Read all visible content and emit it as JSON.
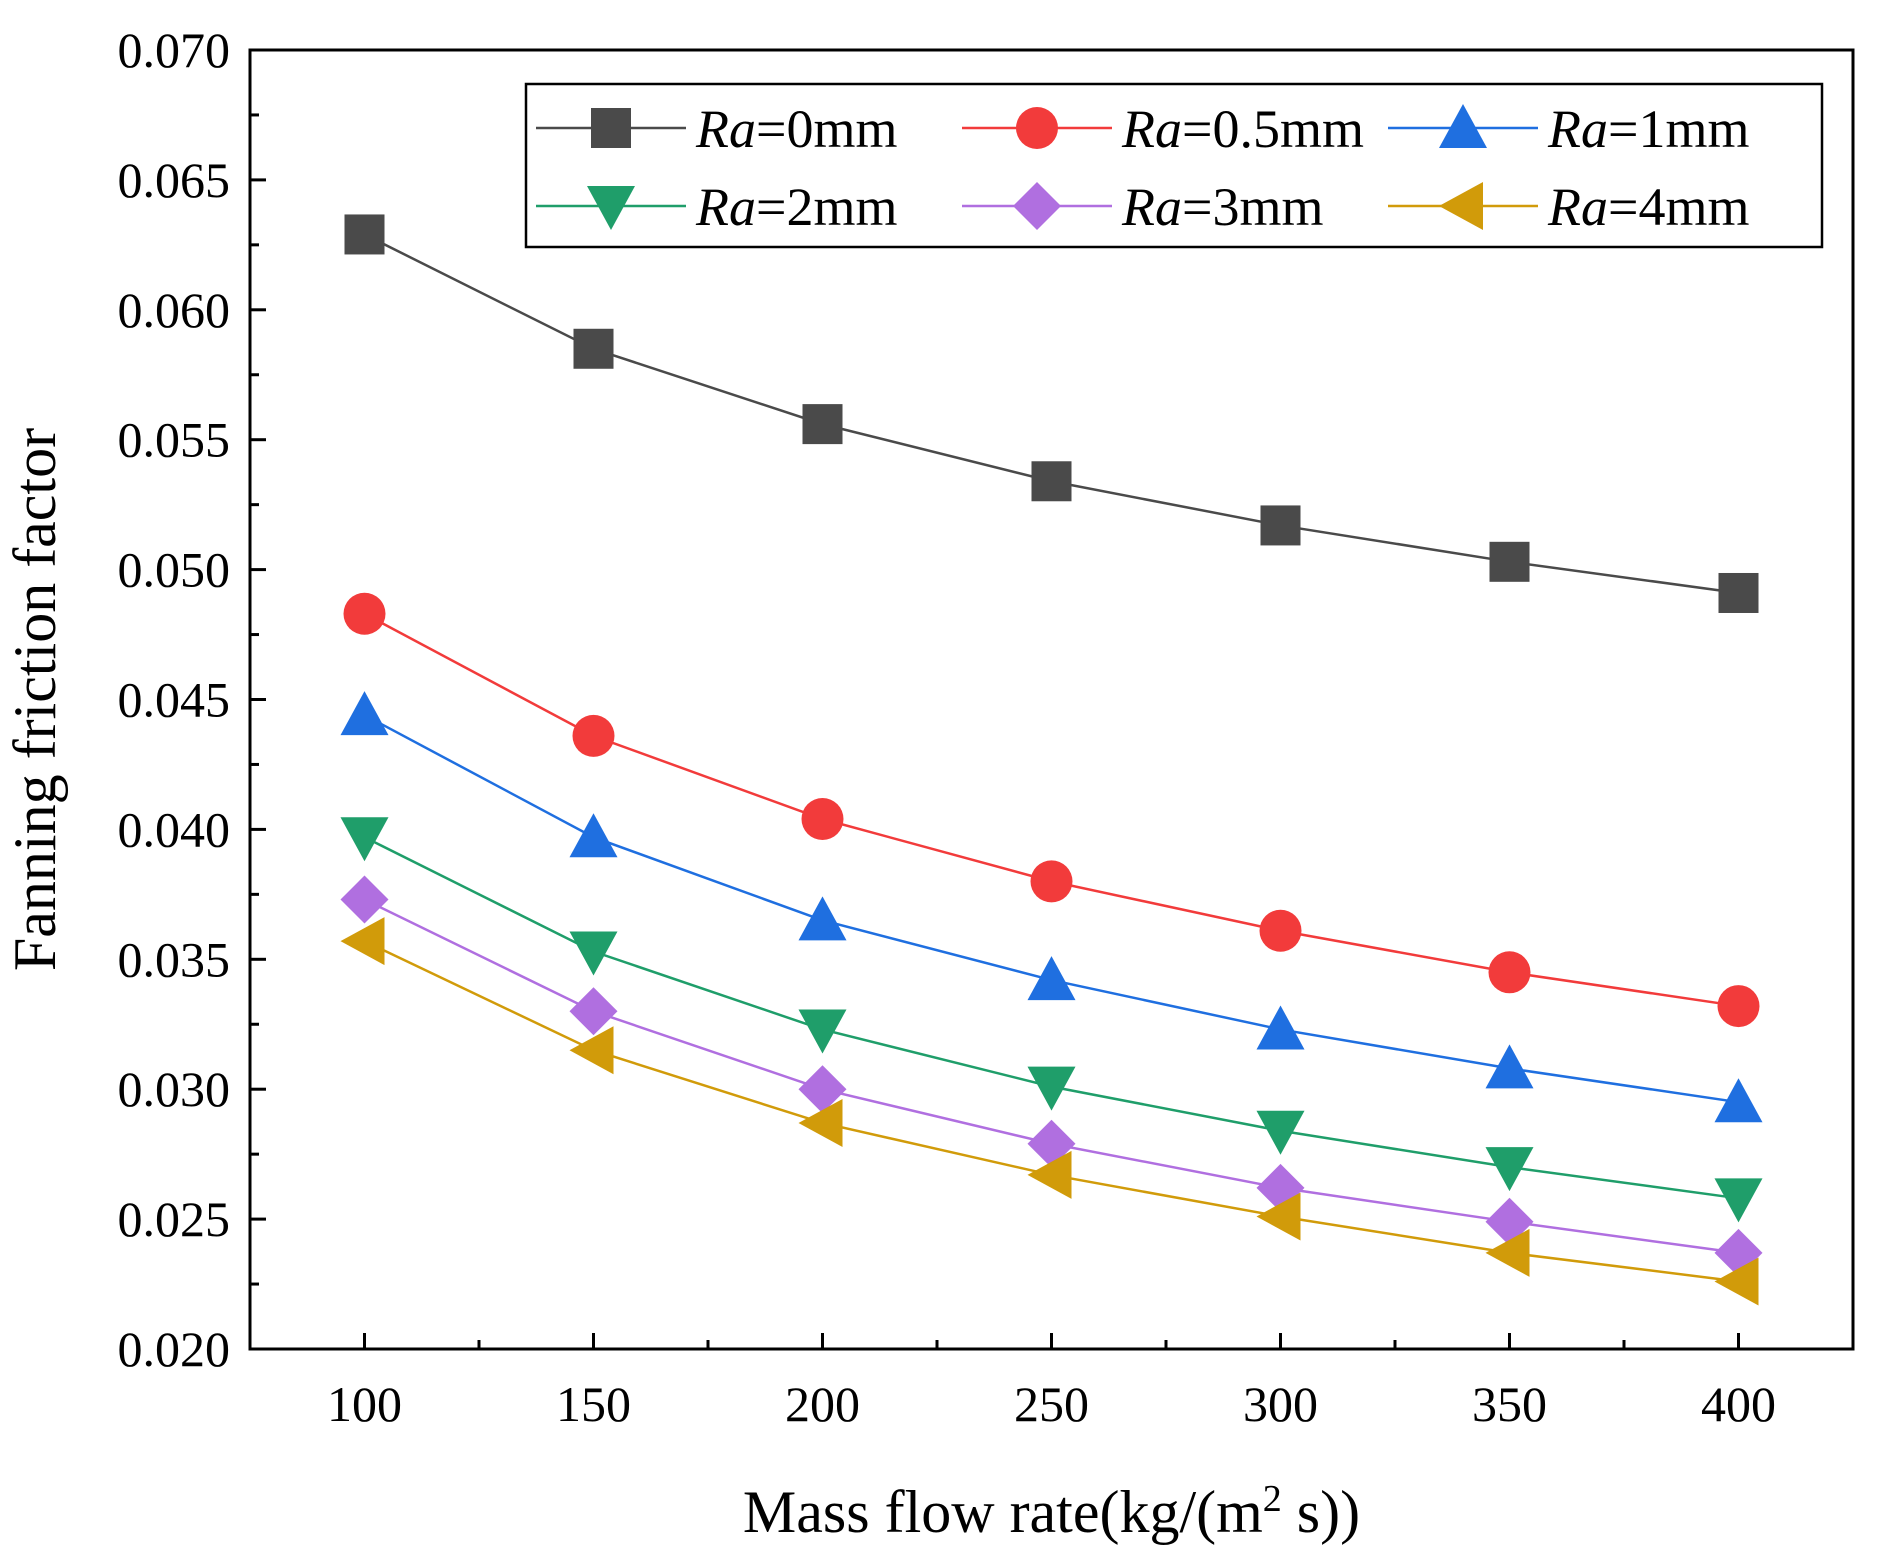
{
  "chart_data": {
    "type": "line",
    "title": "",
    "xlabel": "Mass flow rate(kg/(m",
    "xlabel_sup": "2",
    "xlabel_tail": " s))",
    "ylabel": "Fanning friction factor",
    "x": [
      100,
      150,
      200,
      250,
      300,
      350,
      400
    ],
    "xlim": [
      75,
      425
    ],
    "ylim": [
      0.02,
      0.07
    ],
    "xticks": [
      100,
      150,
      200,
      250,
      300,
      350,
      400
    ],
    "xtick_labels": [
      "100",
      "150",
      "200",
      "250",
      "300",
      "350",
      "400"
    ],
    "yticks": [
      0.02,
      0.025,
      0.03,
      0.035,
      0.04,
      0.045,
      0.05,
      0.055,
      0.06,
      0.065,
      0.07
    ],
    "ytick_labels": [
      "0.020",
      "0.025",
      "0.030",
      "0.035",
      "0.040",
      "0.045",
      "0.050",
      "0.055",
      "0.060",
      "0.065",
      "0.070"
    ],
    "grid": false,
    "legend_position": "top-right",
    "series": [
      {
        "name": "Ra=0mm",
        "italic": "Ra",
        "rest": "=0mm",
        "marker": "square",
        "color": "#4a4a4a",
        "values": [
          0.0629,
          0.0585,
          0.0556,
          0.0534,
          0.0517,
          0.0503,
          0.0491
        ]
      },
      {
        "name": "Ra=0.5mm",
        "italic": "Ra",
        "rest": "=0.5mm",
        "marker": "circle",
        "color": "#f23b3b",
        "values": [
          0.0483,
          0.0436,
          0.0404,
          0.038,
          0.0361,
          0.0345,
          0.0332
        ]
      },
      {
        "name": "Ra=1mm",
        "italic": "Ra",
        "rest": "=1mm",
        "marker": "triangle-up",
        "color": "#1f6fe0",
        "values": [
          0.0444,
          0.0397,
          0.0365,
          0.0342,
          0.0323,
          0.0308,
          0.0295
        ]
      },
      {
        "name": "Ra=2mm",
        "italic": "Ra",
        "rest": "=2mm",
        "marker": "triangle-down",
        "color": "#1f9e6a",
        "values": [
          0.0397,
          0.0353,
          0.0323,
          0.0301,
          0.0284,
          0.027,
          0.0258
        ]
      },
      {
        "name": "Ra=3mm",
        "italic": "Ra",
        "rest": "=3mm",
        "marker": "diamond",
        "color": "#b06fe0",
        "values": [
          0.0373,
          0.033,
          0.03,
          0.0279,
          0.0262,
          0.0249,
          0.0237
        ]
      },
      {
        "name": "Ra=4mm",
        "italic": "Ra",
        "rest": "=4mm",
        "marker": "triangle-left",
        "color": "#d19b0a",
        "values": [
          0.0357,
          0.0315,
          0.0287,
          0.0267,
          0.0251,
          0.0237,
          0.0226
        ]
      }
    ]
  }
}
